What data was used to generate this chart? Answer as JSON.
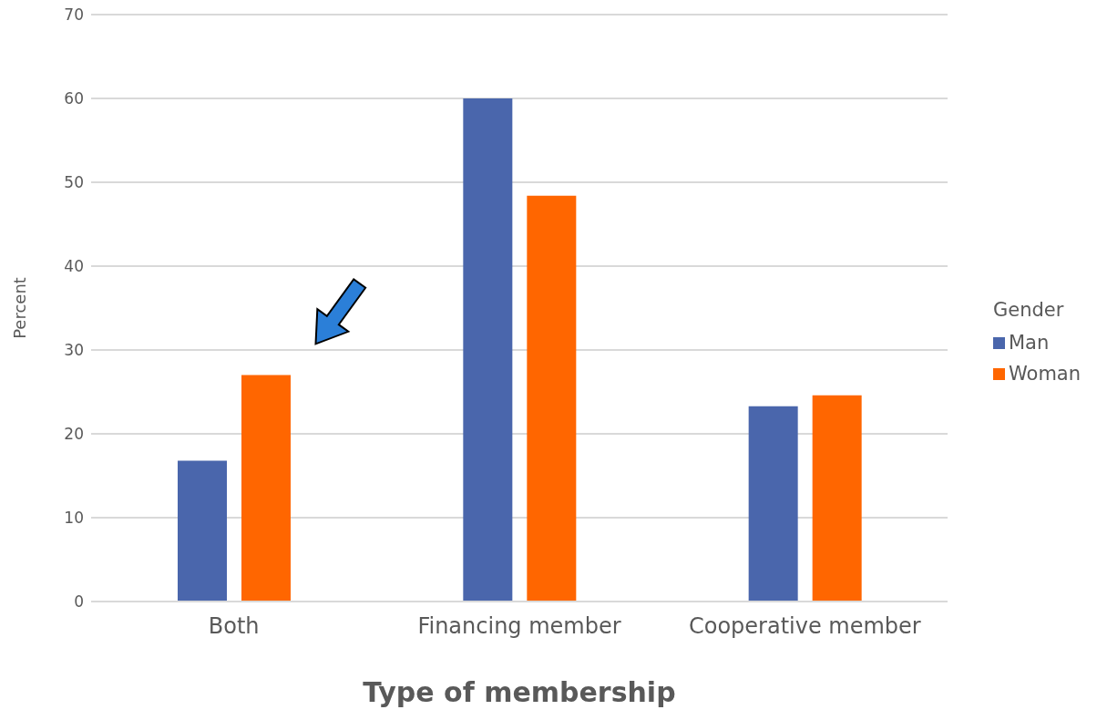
{
  "chart_data": {
    "type": "bar",
    "xlabel": "Type of membership",
    "ylabel": "Percent",
    "legend_title": "Gender",
    "categories": [
      "Both",
      "Financing member",
      "Cooperative member"
    ],
    "series": [
      {
        "name": "Man",
        "color": "#4a66ac",
        "values": [
          16.8,
          60,
          23.3
        ]
      },
      {
        "name": "Woman",
        "color": "#ff6600",
        "values": [
          27,
          48.4,
          24.6
        ]
      }
    ],
    "ylim": [
      0,
      70
    ],
    "yticks": [
      0,
      10,
      20,
      30,
      40,
      50,
      60,
      70
    ],
    "grid": "y",
    "legend": "right"
  }
}
